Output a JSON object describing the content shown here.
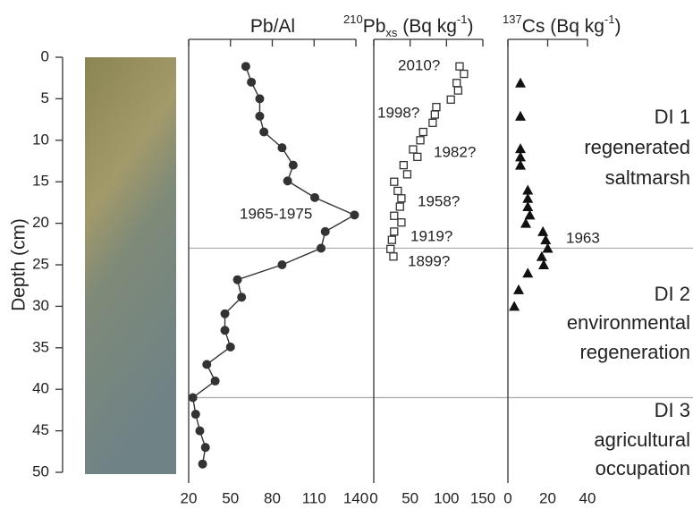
{
  "depth_axis": {
    "label": "Depth (cm)",
    "ylim": [
      0,
      50
    ],
    "yticks": [
      0,
      5,
      10,
      15,
      20,
      25,
      30,
      35,
      40,
      45,
      50
    ]
  },
  "zones": {
    "boundaries": [
      23,
      41
    ],
    "labels": [
      [
        "DI 1",
        "regenerated",
        "saltmarsh"
      ],
      [
        "DI 2",
        "environmental",
        "regeneration"
      ],
      [
        "DI 3",
        "agricultural",
        "occupation"
      ]
    ]
  },
  "chart_data": [
    {
      "type": "scatter",
      "title": [
        "Pb/Al"
      ],
      "connected": true,
      "marker": "circle",
      "color": "#333",
      "xlim": [
        20,
        140
      ],
      "xticks": [
        20,
        50,
        80,
        110,
        140
      ],
      "x": [
        61,
        65,
        71,
        71,
        74,
        87,
        95,
        91,
        110.5,
        139,
        118,
        115,
        87,
        55,
        58,
        46,
        46,
        50,
        33,
        39,
        23,
        25,
        28,
        32,
        30
      ],
      "values": [
        1.1,
        3,
        5,
        7.1,
        9,
        10.9,
        13,
        14.9,
        16.9,
        19,
        21,
        23,
        25,
        26.8,
        28.9,
        30.9,
        32.9,
        34.9,
        37,
        39,
        41,
        43,
        45,
        47,
        49
      ],
      "annotations": [
        "1965-1975"
      ]
    },
    {
      "type": "scatter",
      "title": [
        "210",
        "Pb",
        "xs",
        " (Bq kg",
        "-1",
        ")"
      ],
      "connected": false,
      "marker": "square",
      "color": "#333",
      "xlim": [
        0,
        150
      ],
      "xticks": [
        0,
        50,
        100,
        150
      ],
      "x": [
        118,
        124,
        114,
        116,
        106,
        86,
        84,
        81,
        68,
        64,
        54,
        60,
        41,
        46,
        28,
        33,
        38,
        36,
        28,
        38,
        28,
        25,
        23,
        27
      ],
      "values": [
        1.1,
        2,
        3.1,
        4,
        5.1,
        6,
        6.9,
        7.9,
        9,
        10,
        11.1,
        12,
        13,
        14.1,
        15,
        16.1,
        17,
        18,
        19.1,
        19.9,
        21,
        22,
        23.1,
        24
      ],
      "annotations": [
        "2010?",
        "1998?",
        "1982?",
        "1958?",
        "1919?",
        "1899?"
      ]
    },
    {
      "type": "scatter",
      "title": [
        "137",
        "Cs (Bq kg",
        "-1",
        ")"
      ],
      "connected": false,
      "marker": "triangle",
      "color": "#111",
      "xlim": [
        0,
        40
      ],
      "xticks": [
        0,
        20,
        40
      ],
      "x": [
        6.3,
        6.3,
        6.3,
        6.3,
        6.3,
        10,
        10,
        10,
        11,
        9,
        17.6,
        19,
        20,
        17,
        18,
        10,
        5.4,
        3.2
      ],
      "values": [
        3.1,
        7.1,
        11,
        12,
        13,
        16,
        17,
        18,
        19,
        20,
        21,
        22,
        23,
        24,
        25,
        26,
        28,
        30
      ],
      "annotations": [
        "1963"
      ]
    }
  ]
}
